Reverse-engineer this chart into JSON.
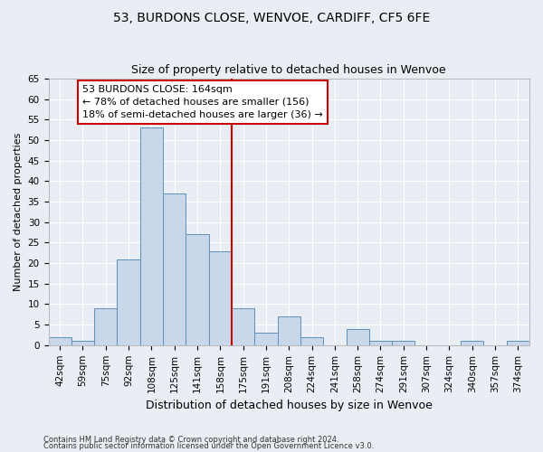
{
  "title": "53, BURDONS CLOSE, WENVOE, CARDIFF, CF5 6FE",
  "subtitle": "Size of property relative to detached houses in Wenvoe",
  "xlabel": "Distribution of detached houses by size in Wenvoe",
  "ylabel": "Number of detached properties",
  "categories": [
    "42sqm",
    "59sqm",
    "75sqm",
    "92sqm",
    "108sqm",
    "125sqm",
    "141sqm",
    "158sqm",
    "175sqm",
    "191sqm",
    "208sqm",
    "224sqm",
    "241sqm",
    "258sqm",
    "274sqm",
    "291sqm",
    "307sqm",
    "324sqm",
    "340sqm",
    "357sqm",
    "374sqm"
  ],
  "values": [
    2,
    1,
    9,
    21,
    53,
    37,
    27,
    23,
    9,
    3,
    7,
    2,
    0,
    4,
    1,
    1,
    0,
    0,
    1,
    0,
    1
  ],
  "bar_color": "#c8d8ea",
  "bar_edge_color": "#6090b8",
  "property_line_index": 7.5,
  "annotation_text": "53 BURDONS CLOSE: 164sqm\n← 78% of detached houses are smaller (156)\n18% of semi-detached houses are larger (36) →",
  "annotation_box_color": "#ffffff",
  "annotation_box_edge_color": "#cc0000",
  "vline_color": "#cc0000",
  "ylim": [
    0,
    65
  ],
  "yticks": [
    0,
    5,
    10,
    15,
    20,
    25,
    30,
    35,
    40,
    45,
    50,
    55,
    60,
    65
  ],
  "background_color": "#e8eef4",
  "grid_color": "#ffffff",
  "footer1": "Contains HM Land Registry data © Crown copyright and database right 2024.",
  "footer2": "Contains public sector information licensed under the Open Government Licence v3.0.",
  "title_fontsize": 10,
  "subtitle_fontsize": 9,
  "annotation_fontsize": 8,
  "ylabel_fontsize": 8,
  "xlabel_fontsize": 9,
  "tick_fontsize": 7.5,
  "footer_fontsize": 6
}
